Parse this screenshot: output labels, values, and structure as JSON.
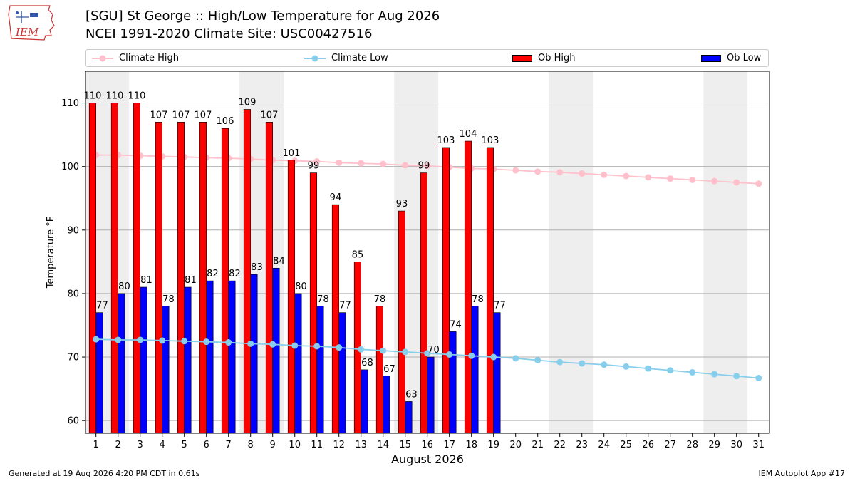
{
  "header": {
    "title_line1": "[SGU] St George :: High/Low Temperature for Aug 2026",
    "title_line2": "NCEI 1991-2020 Climate Site: USC00427516",
    "logo_text": "IEM"
  },
  "legend": {
    "climate_high": "Climate High",
    "climate_low": "Climate Low",
    "ob_high": "Ob High",
    "ob_low": "Ob Low"
  },
  "colors": {
    "ob_high": "#ff0000",
    "ob_low": "#0000ff",
    "climate_high": "#ffc0cb",
    "climate_low": "#87ceeb",
    "weekend_band": "#eeeeee"
  },
  "footer": {
    "left": "Generated at 19 Aug 2026 4:20 PM CDT in 0.61s",
    "right": "IEM Autoplot App #17"
  },
  "chart_data": {
    "type": "bar",
    "title": "[SGU] St George :: High/Low Temperature for Aug 2026",
    "xlabel": "August 2026",
    "ylabel": "Temperature °F",
    "ylim": [
      58,
      115
    ],
    "yticks": [
      60,
      70,
      80,
      90,
      100,
      110
    ],
    "grid": true,
    "legend_position": "top",
    "days": [
      1,
      2,
      3,
      4,
      5,
      6,
      7,
      8,
      9,
      10,
      11,
      12,
      13,
      14,
      15,
      16,
      17,
      18,
      19,
      20,
      21,
      22,
      23,
      24,
      25,
      26,
      27,
      28,
      29,
      30,
      31
    ],
    "weekend_bands": [
      [
        1,
        2
      ],
      [
        8,
        9
      ],
      [
        15,
        16
      ],
      [
        22,
        23
      ],
      [
        29,
        30
      ]
    ],
    "series": [
      {
        "name": "Ob High",
        "kind": "bar",
        "values": [
          110,
          110,
          110,
          107,
          107,
          107,
          106,
          109,
          107,
          101,
          99,
          94,
          85,
          78,
          93,
          99,
          103,
          104,
          103
        ]
      },
      {
        "name": "Ob Low",
        "kind": "bar",
        "values": [
          77,
          80,
          81,
          78,
          81,
          82,
          82,
          83,
          84,
          80,
          78,
          77,
          68,
          67,
          63,
          70,
          74,
          78,
          77
        ]
      },
      {
        "name": "Climate High",
        "kind": "line",
        "values": [
          101.8,
          101.8,
          101.7,
          101.6,
          101.5,
          101.4,
          101.3,
          101.2,
          101.0,
          100.9,
          100.8,
          100.6,
          100.5,
          100.4,
          100.2,
          100.1,
          99.9,
          99.7,
          99.6,
          99.4,
          99.2,
          99.1,
          98.9,
          98.7,
          98.5,
          98.3,
          98.1,
          97.9,
          97.7,
          97.5,
          97.3
        ]
      },
      {
        "name": "Climate Low",
        "kind": "line",
        "values": [
          72.8,
          72.7,
          72.7,
          72.6,
          72.5,
          72.4,
          72.3,
          72.1,
          72.0,
          71.8,
          71.7,
          71.5,
          71.2,
          71.0,
          70.8,
          70.6,
          70.4,
          70.2,
          70.0,
          69.8,
          69.5,
          69.2,
          69.0,
          68.8,
          68.5,
          68.2,
          67.9,
          67.6,
          67.3,
          67.0,
          66.7
        ]
      }
    ]
  }
}
